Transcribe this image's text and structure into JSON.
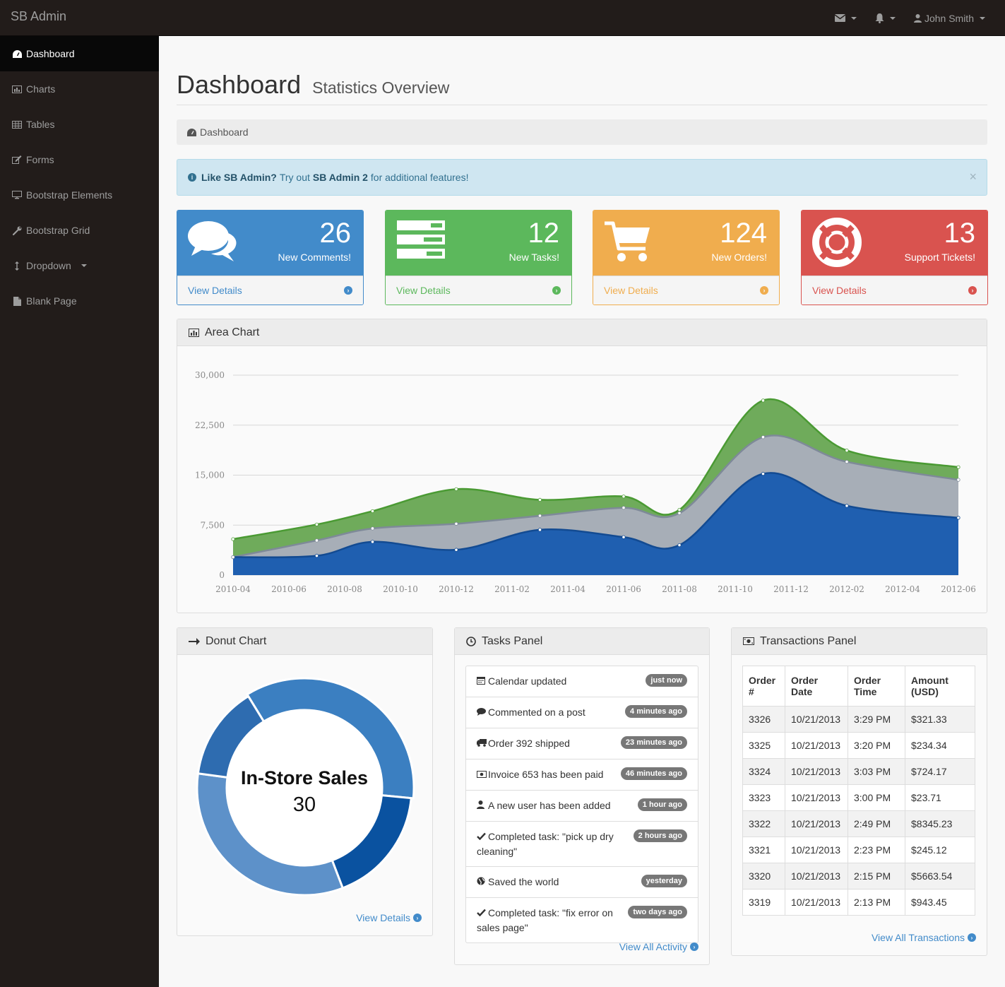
{
  "topbar": {
    "brand": "SB Admin",
    "user": "John Smith"
  },
  "sidebar": {
    "items": [
      {
        "label": "Dashboard",
        "icon": "dashboard-icon"
      },
      {
        "label": "Charts",
        "icon": "bar-chart-icon"
      },
      {
        "label": "Tables",
        "icon": "table-icon"
      },
      {
        "label": "Forms",
        "icon": "edit-icon"
      },
      {
        "label": "Bootstrap Elements",
        "icon": "desktop-icon"
      },
      {
        "label": "Bootstrap Grid",
        "icon": "wrench-icon"
      },
      {
        "label": "Dropdown",
        "icon": "arrows-v-icon"
      },
      {
        "label": "Blank Page",
        "icon": "file-icon"
      }
    ]
  },
  "header": {
    "title": "Dashboard",
    "subtitle": "Statistics Overview"
  },
  "breadcrumb": "Dashboard",
  "alert": {
    "lead": "Like SB Admin?",
    "text1": "Try out",
    "product": "SB Admin 2",
    "text2": "for additional features!",
    "close": "×"
  },
  "stats": [
    {
      "number": "26",
      "label": "New Comments!",
      "link": "View Details",
      "color": "#428bca"
    },
    {
      "number": "12",
      "label": "New Tasks!",
      "link": "View Details",
      "color": "#5cb85c"
    },
    {
      "number": "124",
      "label": "New Orders!",
      "link": "View Details",
      "color": "#f0ad4e"
    },
    {
      "number": "13",
      "label": "Support Tickets!",
      "link": "View Details",
      "color": "#d9534f"
    }
  ],
  "area_panel": {
    "title": "Area Chart"
  },
  "donut_panel": {
    "title": "Donut Chart",
    "link": "View Details"
  },
  "tasks_panel": {
    "title": "Tasks Panel",
    "link": "View All Activity",
    "items": [
      {
        "text": "Calendar updated",
        "badge": "just now",
        "icon": "calendar-icon"
      },
      {
        "text": "Commented on a post",
        "badge": "4 minutes ago",
        "icon": "comment-icon"
      },
      {
        "text": "Order 392 shipped",
        "badge": "23 minutes ago",
        "icon": "truck-icon"
      },
      {
        "text": "Invoice 653 has been paid",
        "badge": "46 minutes ago",
        "icon": "money-icon"
      },
      {
        "text": "A new user has been added",
        "badge": "1 hour ago",
        "icon": "user-icon"
      },
      {
        "text": "Completed task: \"pick up dry cleaning\"",
        "badge": "2 hours ago",
        "icon": "check-icon"
      },
      {
        "text": "Saved the world",
        "badge": "yesterday",
        "icon": "globe-icon"
      },
      {
        "text": "Completed task: \"fix error on sales page\"",
        "badge": "two days ago",
        "icon": "check-icon"
      }
    ]
  },
  "transactions_panel": {
    "title": "Transactions Panel",
    "link": "View All Transactions",
    "headers": [
      "Order #",
      "Order Date",
      "Order Time",
      "Amount (USD)"
    ],
    "rows": [
      [
        "3326",
        "10/21/2013",
        "3:29 PM",
        "$321.33"
      ],
      [
        "3325",
        "10/21/2013",
        "3:20 PM",
        "$234.34"
      ],
      [
        "3324",
        "10/21/2013",
        "3:03 PM",
        "$724.17"
      ],
      [
        "3323",
        "10/21/2013",
        "3:00 PM",
        "$23.71"
      ],
      [
        "3322",
        "10/21/2013",
        "2:49 PM",
        "$8345.23"
      ],
      [
        "3321",
        "10/21/2013",
        "2:23 PM",
        "$245.12"
      ],
      [
        "3320",
        "10/21/2013",
        "2:15 PM",
        "$5663.54"
      ],
      [
        "3319",
        "10/21/2013",
        "2:13 PM",
        "$943.45"
      ]
    ]
  },
  "chart_data": [
    {
      "type": "area",
      "title": "Area Chart",
      "y_ticks": [
        "0",
        "7,500",
        "15,000",
        "22,500",
        "30,000"
      ],
      "ylim": [
        0,
        30000
      ],
      "x_tick_labels": [
        "2010-04",
        "2010-06",
        "2010-08",
        "2010-10",
        "2010-12",
        "2011-02",
        "2011-04",
        "2011-06",
        "2011-08",
        "2011-10",
        "2011-12",
        "2012-02",
        "2012-04",
        "2012-06"
      ],
      "x": [
        "2010-04",
        "2010-07",
        "2010-09",
        "2010-12",
        "2011-03",
        "2011-06",
        "2011-08",
        "2011-11",
        "2012-02",
        "2012-06"
      ],
      "stacked": true,
      "series": [
        {
          "values": [
            2700,
            2900,
            5000,
            3800,
            6800,
            5700,
            4500,
            15200,
            10400,
            8600
          ],
          "color": "#1f5fb0"
        },
        {
          "values": [
            0,
            2300,
            2000,
            3900,
            2100,
            4400,
            4800,
            5500,
            6600,
            5700
          ],
          "color": "#a7aeb7"
        },
        {
          "values": [
            2700,
            2400,
            2600,
            5200,
            2400,
            1700,
            500,
            5500,
            1700,
            1900
          ],
          "color": "#6fab5b"
        }
      ],
      "grid": true
    },
    {
      "type": "pie",
      "title": "Donut Chart",
      "center_label": "In-Store Sales",
      "center_value": "30",
      "slices": [
        {
          "value": 30,
          "color": "#3b7fc1"
        },
        {
          "value": 15,
          "color": "#0a52a0"
        },
        {
          "value": 28,
          "color": "#5d91c9"
        },
        {
          "value": 12,
          "color": "#2e6cb0"
        }
      ]
    }
  ]
}
